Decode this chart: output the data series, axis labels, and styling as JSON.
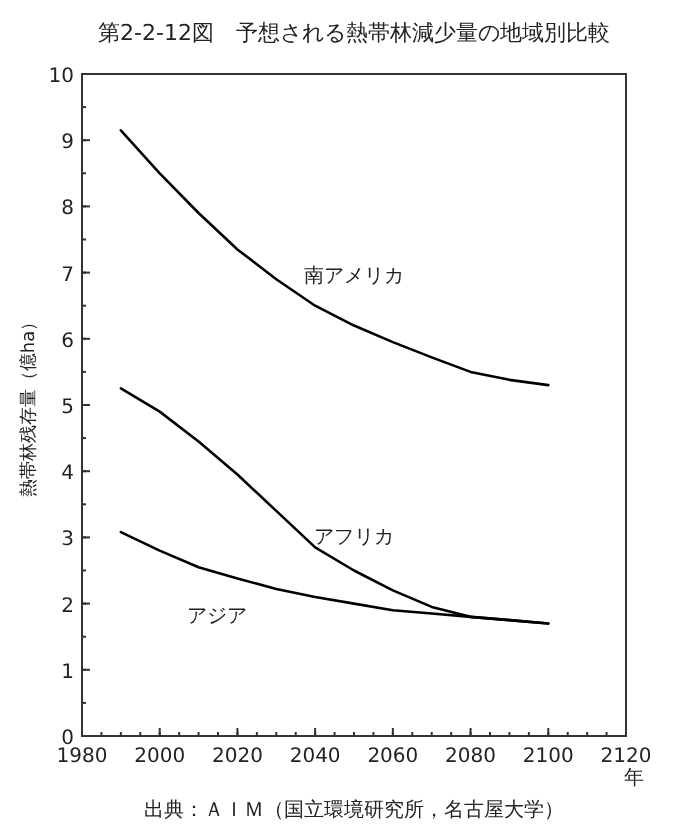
{
  "chart_data": {
    "type": "line",
    "title": "第2-2-12図　予想される熱帯林減少量の地域別比較",
    "xlabel": "年",
    "ylabel": "熱帯林残存量（億ha）",
    "x": [
      1990,
      2000,
      2010,
      2020,
      2030,
      2040,
      2050,
      2060,
      2070,
      2080,
      2090,
      2100
    ],
    "series": [
      {
        "name": "南アメリカ",
        "color": "#000000",
        "values": [
          9.15,
          8.5,
          7.9,
          7.35,
          6.9,
          6.5,
          6.2,
          5.95,
          5.72,
          5.5,
          5.38,
          5.3
        ]
      },
      {
        "name": "アフリカ",
        "color": "#000000",
        "values": [
          5.25,
          4.9,
          4.45,
          3.95,
          3.4,
          2.85,
          2.5,
          2.2,
          1.95,
          1.8,
          1.75,
          1.7
        ]
      },
      {
        "name": "アジア",
        "color": "#000000",
        "values": [
          3.08,
          2.8,
          2.55,
          2.38,
          2.22,
          2.1,
          2.0,
          1.9,
          1.85,
          1.8,
          1.75,
          1.7
        ]
      }
    ],
    "xlim": [
      1980,
      2120
    ],
    "xticks": [
      1980,
      2000,
      2020,
      2040,
      2060,
      2080,
      2100,
      2120
    ],
    "ylim": [
      0,
      10
    ],
    "yticks": [
      0,
      1,
      2,
      3,
      4,
      5,
      6,
      7,
      8,
      9,
      10
    ],
    "annotations": [
      "出典：ＡＩＭ（国立環境研究所，名古屋大学）"
    ],
    "grid": false,
    "legend": false,
    "marker": "none",
    "line_style": "solid"
  }
}
